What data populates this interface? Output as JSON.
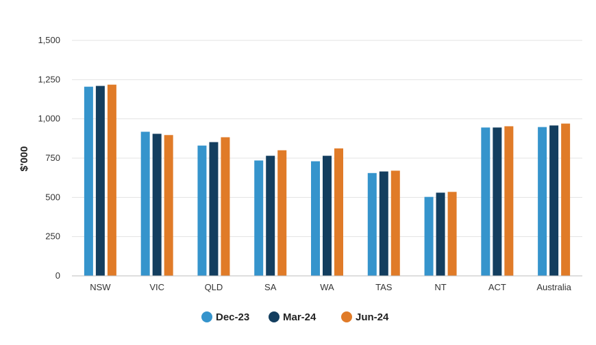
{
  "chart_data": {
    "type": "bar",
    "title": "",
    "xlabel": "",
    "ylabel": "$'000",
    "ylim": [
      0,
      1500
    ],
    "yticks": [
      0,
      250,
      500,
      750,
      1000,
      1250,
      1500
    ],
    "ytick_labels": [
      "0",
      "250",
      "500",
      "750",
      "1,000",
      "1,250",
      "1,500"
    ],
    "grid": true,
    "legend_position": "bottom-center",
    "categories": [
      "NSW",
      "VIC",
      "QLD",
      "SA",
      "WA",
      "TAS",
      "NT",
      "ACT",
      "Australia"
    ],
    "series": [
      {
        "name": "Dec-23",
        "color": "#3594CC",
        "values": [
          1205,
          918,
          830,
          735,
          730,
          655,
          503,
          945,
          948
        ]
      },
      {
        "name": "Mar-24",
        "color": "#133E5F",
        "values": [
          1210,
          905,
          852,
          765,
          765,
          665,
          530,
          945,
          958
        ]
      },
      {
        "name": "Jun-24",
        "color": "#E07B28",
        "values": [
          1218,
          897,
          883,
          800,
          812,
          670,
          535,
          953,
          970
        ]
      }
    ]
  }
}
